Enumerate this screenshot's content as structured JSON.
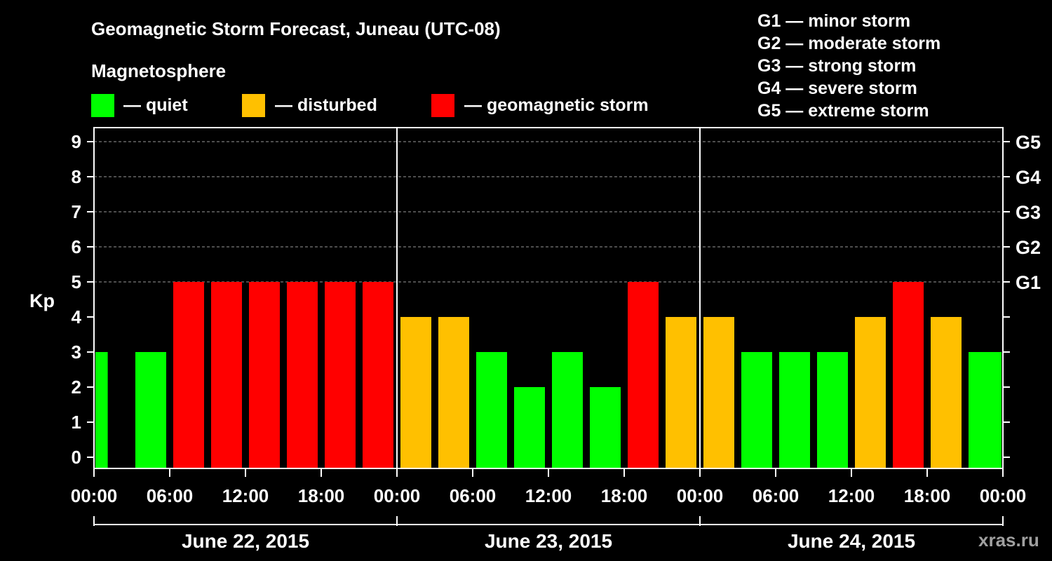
{
  "chart_data": {
    "type": "bar",
    "title": "Geomagnetic Storm Forecast, Juneau (UTC-08)",
    "subtitle": "Magnetosphere",
    "ylabel": "Kp",
    "ylim": [
      0,
      9
    ],
    "yticks": [
      "0",
      "1",
      "2",
      "3",
      "4",
      "5",
      "6",
      "7",
      "8",
      "9"
    ],
    "right_axis_labels": [
      {
        "kp": 5,
        "label": "G1"
      },
      {
        "kp": 6,
        "label": "G2"
      },
      {
        "kp": 7,
        "label": "G3"
      },
      {
        "kp": 8,
        "label": "G4"
      },
      {
        "kp": 9,
        "label": "G5"
      }
    ],
    "x_tick_labels": [
      "00:00",
      "06:00",
      "12:00",
      "18:00",
      "00:00",
      "06:00",
      "12:00",
      "18:00",
      "00:00",
      "06:00",
      "12:00",
      "18:00",
      "00:00"
    ],
    "x_range_hours": [
      0,
      72
    ],
    "days": [
      "June 22, 2015",
      "June 23, 2015",
      "June 24, 2015"
    ],
    "bar_hour_starts": [
      0,
      3,
      6,
      9,
      12,
      15,
      18,
      21,
      24,
      27,
      30,
      33,
      36,
      39,
      42,
      45,
      48,
      51,
      54,
      57,
      60,
      63,
      66,
      69
    ],
    "bar_hours": 3,
    "values": [
      3,
      3,
      5,
      5,
      5,
      5,
      5,
      5,
      4,
      4,
      3,
      2,
      3,
      2,
      5,
      4,
      4,
      3,
      3,
      3,
      4,
      5,
      4,
      3
    ],
    "grid": true,
    "legend": {
      "position": "top",
      "items": [
        {
          "label": "— quiet",
          "color": "#00ff00"
        },
        {
          "label": "— disturbed",
          "color": "#ffc000"
        },
        {
          "label": "— geomagnetic storm",
          "color": "#ff0000"
        }
      ]
    },
    "storm_scale": [
      "G1 — minor storm",
      "G2 — moderate storm",
      "G3 — strong storm",
      "G4 — severe storm",
      "G5 — extreme storm"
    ],
    "colors": {
      "quiet": "#00ff00",
      "disturbed": "#ffc000",
      "storm": "#ff0000",
      "background": "#000000",
      "foreground": "#ffffff"
    },
    "watermark": "xras.ru"
  }
}
